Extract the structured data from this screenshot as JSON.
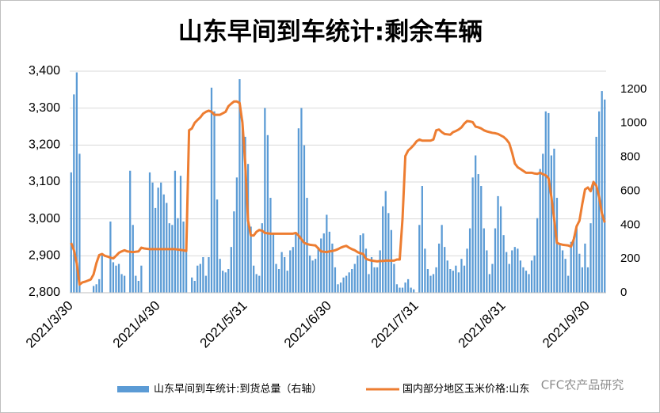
{
  "chart_data": {
    "type": "combo",
    "title": "山东早间到车统计:剩余车辆",
    "annotation": "CFC农产品研究",
    "categories": [
      "2021/3/30",
      null,
      null,
      null,
      null,
      null,
      null,
      null,
      null,
      null,
      null,
      null,
      null,
      null,
      null,
      null,
      null,
      null,
      null,
      null,
      null,
      null,
      null,
      null,
      null,
      null,
      null,
      null,
      null,
      null,
      null,
      "2021/4/30",
      null,
      null,
      null,
      null,
      null,
      null,
      null,
      null,
      null,
      null,
      null,
      null,
      null,
      null,
      null,
      null,
      null,
      null,
      null,
      null,
      null,
      null,
      null,
      null,
      null,
      null,
      null,
      null,
      null,
      null,
      "2021/5/31",
      null,
      null,
      null,
      null,
      null,
      null,
      null,
      null,
      null,
      null,
      null,
      null,
      null,
      null,
      null,
      null,
      null,
      null,
      null,
      null,
      null,
      null,
      null,
      null,
      null,
      null,
      null,
      null,
      null,
      "2021/6/30",
      null,
      null,
      null,
      null,
      null,
      null,
      null,
      null,
      null,
      null,
      null,
      null,
      null,
      null,
      null,
      null,
      null,
      null,
      null,
      null,
      null,
      null,
      null,
      null,
      null,
      null,
      null,
      null,
      null,
      null,
      "2021/7/31",
      null,
      null,
      null,
      null,
      null,
      null,
      null,
      null,
      null,
      null,
      null,
      null,
      null,
      null,
      null,
      null,
      null,
      null,
      null,
      null,
      null,
      null,
      null,
      null,
      null,
      null,
      null,
      null,
      null,
      null,
      "2021/8/31",
      null,
      null,
      null,
      null,
      null,
      null,
      null,
      null,
      null,
      null,
      null,
      null,
      null,
      null,
      null,
      null,
      null,
      null,
      null,
      null,
      null,
      null,
      null,
      null,
      null,
      null,
      null,
      null,
      null,
      "2021/9/30",
      null,
      null,
      null,
      null,
      null,
      null
    ],
    "series": [
      {
        "name": "山东早间到车统计:到货总量（右轴）",
        "type": "bar",
        "axis": "y2",
        "color": "#5b9bd5",
        "values": [
          710,
          1170,
          1300,
          820,
          null,
          null,
          null,
          null,
          40,
          50,
          80,
          220,
          null,
          null,
          420,
          180,
          160,
          170,
          110,
          100,
          null,
          720,
          400,
          100,
          70,
          160,
          null,
          null,
          710,
          650,
          500,
          620,
          650,
          580,
          530,
          410,
          400,
          720,
          440,
          690,
          420,
          240,
          null,
          90,
          70,
          160,
          170,
          210,
          100,
          210,
          1210,
          1070,
          550,
          200,
          130,
          120,
          140,
          270,
          480,
          680,
          1260,
          1020,
          920,
          760,
          390,
          160,
          110,
          100,
          410,
          1090,
          930,
          560,
          350,
          170,
          140,
          240,
          210,
          130,
          250,
          270,
          350,
          970,
          1090,
          870,
          560,
          220,
          190,
          200,
          270,
          320,
          350,
          460,
          360,
          290,
          150,
          50,
          60,
          90,
          100,
          120,
          140,
          170,
          220,
          340,
          350,
          260,
          110,
          210,
          150,
          150,
          250,
          510,
          600,
          470,
          370,
          170,
          50,
          30,
          30,
          60,
          80,
          30,
          20,
          null,
          400,
          630,
          260,
          140,
          100,
          110,
          150,
          290,
          400,
          270,
          190,
          140,
          130,
          160,
          120,
          200,
          160,
          260,
          380,
          680,
          810,
          700,
          630,
          380,
          250,
          110,
          170,
          380,
          570,
          510,
          340,
          240,
          170,
          250,
          270,
          260,
          190,
          150,
          130,
          110,
          190,
          220,
          440,
          730,
          820,
          1070,
          1060,
          810,
          850,
          560,
          290,
          250,
          200,
          100,
          300,
          330,
          380,
          230,
          150,
          290,
          150,
          410,
          660,
          920,
          1070,
          1190,
          1140
        ]
      },
      {
        "name": "国内部分地区玉米价格:山东",
        "type": "line",
        "color": "#ed7d31",
        "values": [
          2935,
          2915,
          2880,
          2822,
          2828,
          2830,
          2833,
          2836,
          2850,
          2880,
          2902,
          2905,
          2900,
          2898,
          2895,
          2893,
          2900,
          2908,
          2912,
          2915,
          2912,
          2911,
          2910,
          2911,
          2912,
          2922,
          2920,
          2919,
          2918,
          2918,
          2918,
          2918,
          2918,
          2918,
          2918,
          2918,
          2918,
          2918,
          2917,
          2916,
          2915,
          2913,
          3240,
          3245,
          3260,
          3268,
          3275,
          3285,
          3290,
          3293,
          3290,
          3282,
          3282,
          3282,
          3286,
          3290,
          3305,
          3312,
          3318,
          3318,
          3314,
          3260,
          3150,
          2995,
          2955,
          2955,
          2965,
          2970,
          2968,
          2962,
          2961,
          2960,
          2960,
          2960,
          2960,
          2960,
          2960,
          2960,
          2960,
          2960,
          2962,
          2955,
          2945,
          2935,
          2932,
          2930,
          2929,
          2928,
          2920,
          2912,
          2911,
          2910,
          2912,
          2913,
          2915,
          2918,
          2922,
          2925,
          2927,
          2922,
          2918,
          2915,
          2910,
          2907,
          2905,
          2892,
          2889,
          2887,
          2886,
          2885,
          2886,
          2886,
          2887,
          2887,
          2887,
          2887,
          2890,
          2890,
          3000,
          3170,
          3185,
          3192,
          3200,
          3210,
          3215,
          3212,
          3212,
          3212,
          3212,
          3215,
          3240,
          3242,
          3235,
          3230,
          3229,
          3228,
          3235,
          3238,
          3242,
          3248,
          3258,
          3265,
          3264,
          3262,
          3250,
          3248,
          3245,
          3240,
          3237,
          3235,
          3233,
          3232,
          3230,
          3226,
          3222,
          3215,
          3205,
          3180,
          3150,
          3140,
          3135,
          3130,
          3125,
          3125,
          3125,
          3123,
          3122,
          3125,
          3121,
          3118,
          3110,
          3060,
          3000,
          2935,
          2932,
          2930,
          2929,
          2928,
          2925,
          2945,
          2980,
          2995,
          3040,
          3080,
          3085,
          3075,
          3100,
          3090,
          3060,
          3015,
          2990
        ]
      }
    ],
    "ylim": [
      2800,
      3400
    ],
    "yticks": [
      {
        "value": 2800,
        "label": "2,800"
      },
      {
        "value": 2900,
        "label": "2,900"
      },
      {
        "value": 3000,
        "label": "3,000"
      },
      {
        "value": 3100,
        "label": "3,100"
      },
      {
        "value": 3200,
        "label": "3,200"
      },
      {
        "value": 3300,
        "label": "3,300"
      },
      {
        "value": 3400,
        "label": "3,400"
      }
    ],
    "y2lim": [
      0,
      1307
    ],
    "y2ticks": [
      0,
      200,
      400,
      600,
      800,
      1000,
      1200
    ],
    "grid": true
  }
}
